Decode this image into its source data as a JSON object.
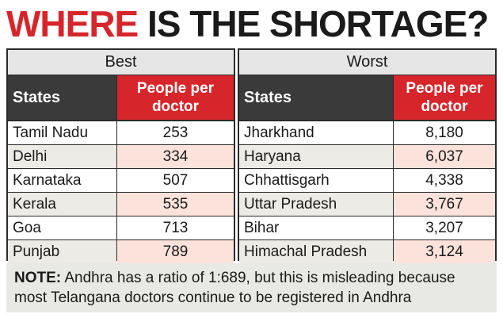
{
  "title": {
    "part1": "WHERE",
    "part2": "IS THE SHORTAGE?"
  },
  "chart_data": {
    "type": "table",
    "tables": [
      {
        "name": "Best",
        "columns": [
          "States",
          "People per doctor"
        ],
        "rows": [
          {
            "state": "Tamil Nadu",
            "value": "253"
          },
          {
            "state": "Delhi",
            "value": "334"
          },
          {
            "state": "Karnataka",
            "value": "507"
          },
          {
            "state": "Kerala",
            "value": "535"
          },
          {
            "state": "Goa",
            "value": "713"
          },
          {
            "state": "Punjab",
            "value": "789"
          }
        ]
      },
      {
        "name": "Worst",
        "columns": [
          "States",
          "People per doctor"
        ],
        "rows": [
          {
            "state": "Jharkhand",
            "value": "8,180"
          },
          {
            "state": "Haryana",
            "value": "6,037"
          },
          {
            "state": "Chhattisgarh",
            "value": "4,338"
          },
          {
            "state": "Uttar Pradesh",
            "value": "3,767"
          },
          {
            "state": "Bihar",
            "value": "3,207"
          },
          {
            "state": "Himachal Pradesh",
            "value": "3,124"
          }
        ]
      }
    ]
  },
  "header_value_lines": [
    "People per",
    "doctor"
  ],
  "note": {
    "label": "NOTE:",
    "text": " Andhra has a ratio of 1:689, but this is misleading because most Telangana doctors continue to be registered in Andhra"
  },
  "colors": {
    "accent": "#d6262b",
    "header_dark": "#3a3a3a",
    "row_tint": "#fbe3dc"
  }
}
